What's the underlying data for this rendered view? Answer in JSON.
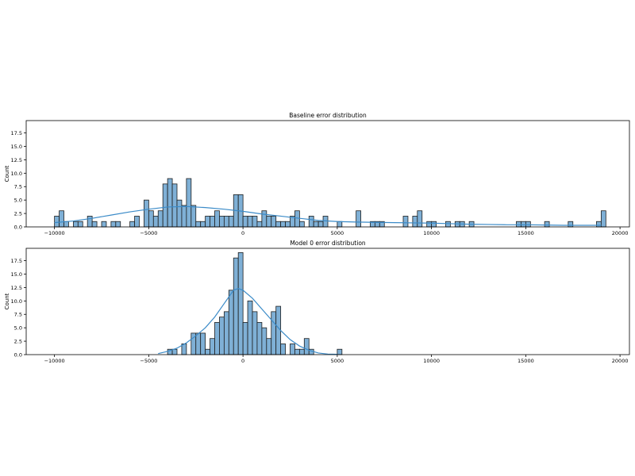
{
  "chart_data": [
    {
      "type": "bar",
      "title": "Baseline error distribution",
      "xlabel": "",
      "ylabel": "Count",
      "xlim": [
        -11500,
        20500
      ],
      "ylim": [
        0,
        19.8
      ],
      "bin_width": 250,
      "xticks": [
        -10000,
        -5000,
        0,
        5000,
        10000,
        15000,
        20000
      ],
      "xtick_labels": [
        "−10000",
        "−5000",
        "0",
        "5000",
        "10000",
        "15000",
        "20000"
      ],
      "yticks": [
        0,
        2.5,
        5,
        7.5,
        10,
        12.5,
        15,
        17.5
      ],
      "ytick_labels": [
        "0.0",
        "2.5",
        "5.0",
        "7.5",
        "10.0",
        "12.5",
        "15.0",
        "17.5"
      ],
      "grid": false,
      "bins": [
        [
          -10000,
          2
        ],
        [
          -9750,
          3
        ],
        [
          -9500,
          1
        ],
        [
          -9000,
          1
        ],
        [
          -8750,
          1
        ],
        [
          -8250,
          2
        ],
        [
          -8000,
          1
        ],
        [
          -7500,
          1
        ],
        [
          -7000,
          1
        ],
        [
          -6750,
          1
        ],
        [
          -6000,
          1
        ],
        [
          -5750,
          2
        ],
        [
          -5250,
          5
        ],
        [
          -5000,
          3
        ],
        [
          -4750,
          2
        ],
        [
          -4500,
          3
        ],
        [
          -4250,
          8
        ],
        [
          -4000,
          9
        ],
        [
          -3750,
          8
        ],
        [
          -3500,
          5
        ],
        [
          -3250,
          4
        ],
        [
          -3000,
          9
        ],
        [
          -2750,
          4
        ],
        [
          -2500,
          1
        ],
        [
          -2250,
          1
        ],
        [
          -2000,
          2
        ],
        [
          -1750,
          2
        ],
        [
          -1500,
          3
        ],
        [
          -1250,
          2
        ],
        [
          -1000,
          2
        ],
        [
          -750,
          2
        ],
        [
          -500,
          6
        ],
        [
          -250,
          6
        ],
        [
          0,
          2
        ],
        [
          250,
          2
        ],
        [
          500,
          2
        ],
        [
          750,
          1
        ],
        [
          1000,
          3
        ],
        [
          1250,
          2
        ],
        [
          1500,
          2
        ],
        [
          1750,
          1
        ],
        [
          2000,
          1
        ],
        [
          2250,
          1
        ],
        [
          2500,
          2
        ],
        [
          2750,
          3
        ],
        [
          3000,
          1
        ],
        [
          3500,
          2
        ],
        [
          3750,
          1
        ],
        [
          4000,
          1
        ],
        [
          4250,
          2
        ],
        [
          5000,
          1
        ],
        [
          6000,
          3
        ],
        [
          6750,
          1
        ],
        [
          7000,
          1
        ],
        [
          7250,
          1
        ],
        [
          8500,
          2
        ],
        [
          9000,
          2
        ],
        [
          9250,
          3
        ],
        [
          9750,
          1
        ],
        [
          10000,
          1
        ],
        [
          10750,
          1
        ],
        [
          11250,
          1
        ],
        [
          11500,
          1
        ],
        [
          12000,
          1
        ],
        [
          14500,
          1
        ],
        [
          14750,
          1
        ],
        [
          15000,
          1
        ],
        [
          16000,
          1
        ],
        [
          17250,
          1
        ],
        [
          18750,
          1
        ],
        [
          19000,
          3
        ]
      ],
      "kde": [
        [
          -10000,
          0.8
        ],
        [
          -9000,
          1.1
        ],
        [
          -8000,
          1.6
        ],
        [
          -7000,
          2.2
        ],
        [
          -6000,
          2.8
        ],
        [
          -5000,
          3.3
        ],
        [
          -4000,
          3.7
        ],
        [
          -3000,
          3.8
        ],
        [
          -2000,
          3.6
        ],
        [
          -1000,
          3.3
        ],
        [
          0,
          2.9
        ],
        [
          1000,
          2.4
        ],
        [
          2000,
          2.0
        ],
        [
          3000,
          1.6
        ],
        [
          4000,
          1.2
        ],
        [
          5000,
          1.0
        ],
        [
          6000,
          0.9
        ],
        [
          7000,
          0.85
        ],
        [
          8000,
          0.8
        ],
        [
          9000,
          0.75
        ],
        [
          10000,
          0.7
        ],
        [
          11000,
          0.6
        ],
        [
          12000,
          0.5
        ],
        [
          13000,
          0.45
        ],
        [
          14000,
          0.4
        ],
        [
          15000,
          0.4
        ],
        [
          16000,
          0.35
        ],
        [
          17000,
          0.3
        ],
        [
          18000,
          0.3
        ],
        [
          19000,
          0.3
        ]
      ]
    },
    {
      "type": "bar",
      "title": "Model 0 error distribution",
      "xlabel": "",
      "ylabel": "Count",
      "xlim": [
        -11500,
        20500
      ],
      "ylim": [
        0,
        19.8
      ],
      "bin_width": 250,
      "xticks": [
        -10000,
        -5000,
        0,
        5000,
        10000,
        15000,
        20000
      ],
      "xtick_labels": [
        "−10000",
        "−5000",
        "0",
        "5000",
        "10000",
        "15000",
        "20000"
      ],
      "yticks": [
        0,
        2.5,
        5,
        7.5,
        10,
        12.5,
        15,
        17.5
      ],
      "ytick_labels": [
        "0.0",
        "2.5",
        "5.0",
        "7.5",
        "10.0",
        "12.5",
        "15.0",
        "17.5"
      ],
      "grid": false,
      "bins": [
        [
          -4000,
          1
        ],
        [
          -3750,
          1
        ],
        [
          -3250,
          2
        ],
        [
          -2750,
          4
        ],
        [
          -2500,
          4
        ],
        [
          -2250,
          4
        ],
        [
          -2000,
          1
        ],
        [
          -1750,
          3
        ],
        [
          -1500,
          6
        ],
        [
          -1250,
          7
        ],
        [
          -1000,
          8
        ],
        [
          -750,
          12
        ],
        [
          -500,
          18
        ],
        [
          -250,
          19
        ],
        [
          0,
          6
        ],
        [
          250,
          10
        ],
        [
          500,
          8
        ],
        [
          750,
          6
        ],
        [
          1000,
          5
        ],
        [
          1250,
          3
        ],
        [
          1500,
          8
        ],
        [
          1750,
          9
        ],
        [
          2000,
          2
        ],
        [
          2500,
          2
        ],
        [
          2750,
          1
        ],
        [
          3000,
          1
        ],
        [
          3250,
          3
        ],
        [
          3500,
          1
        ],
        [
          5000,
          1
        ]
      ],
      "kde": [
        [
          -4500,
          0.2
        ],
        [
          -4000,
          0.6
        ],
        [
          -3500,
          1.2
        ],
        [
          -3000,
          2.2
        ],
        [
          -2500,
          3.5
        ],
        [
          -2000,
          5.0
        ],
        [
          -1500,
          7.0
        ],
        [
          -1000,
          9.5
        ],
        [
          -500,
          12.0
        ],
        [
          -250,
          12.3
        ],
        [
          0,
          12.0
        ],
        [
          500,
          10.5
        ],
        [
          1000,
          8.5
        ],
        [
          1500,
          6.5
        ],
        [
          2000,
          4.5
        ],
        [
          2500,
          2.8
        ],
        [
          3000,
          1.6
        ],
        [
          3500,
          0.8
        ],
        [
          4000,
          0.3
        ],
        [
          4500,
          0.1
        ],
        [
          5000,
          0.05
        ]
      ]
    }
  ]
}
